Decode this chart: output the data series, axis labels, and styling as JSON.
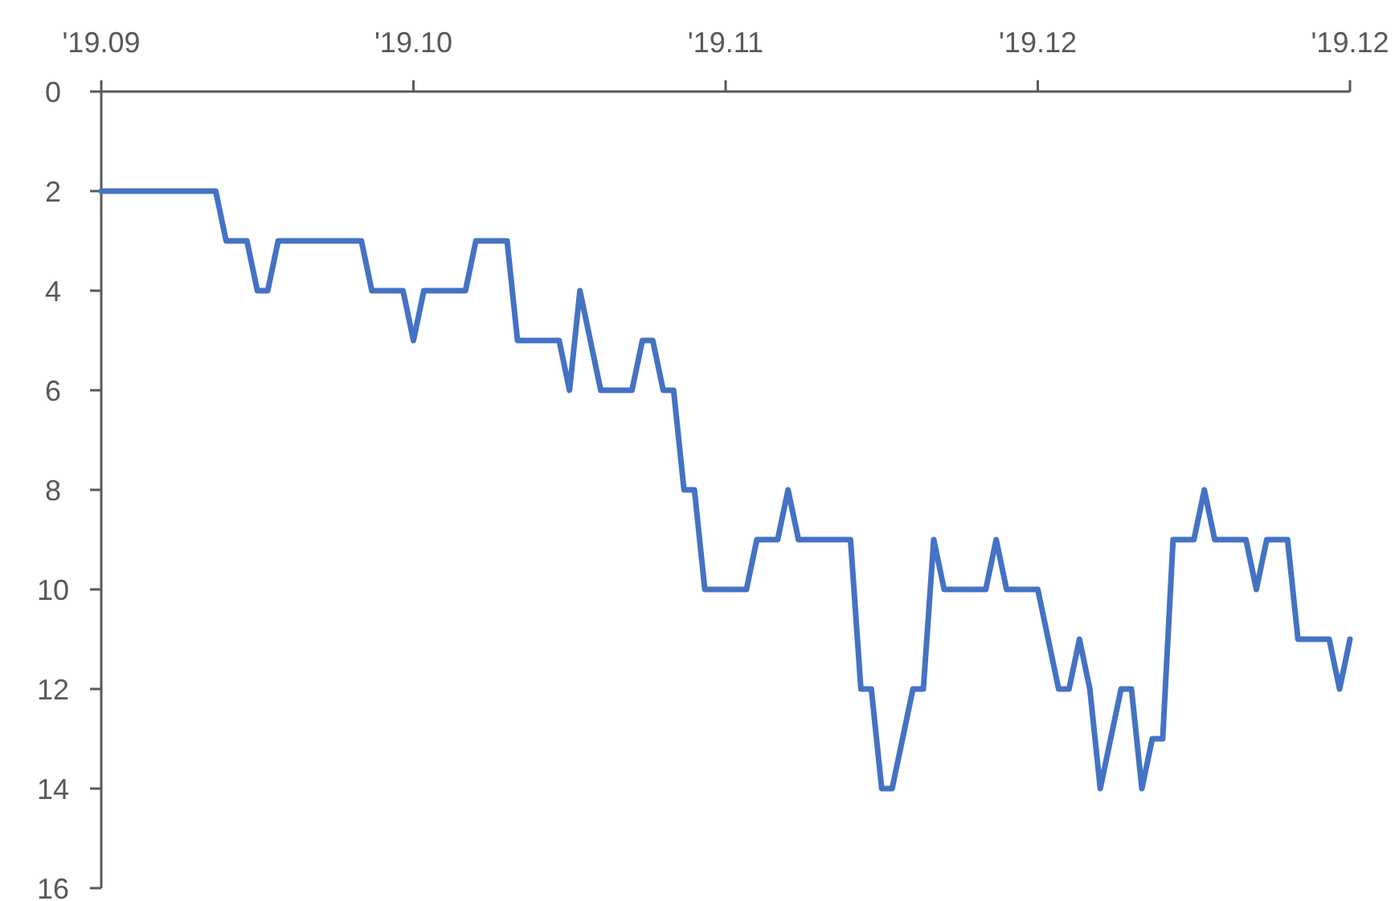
{
  "chart_data": {
    "type": "line",
    "x": [
      "2019-09-02",
      "2019-09-13",
      "2019-09-14",
      "2019-09-16",
      "2019-09-17",
      "2019-09-18",
      "2019-09-19",
      "2019-09-27",
      "2019-09-28",
      "2019-10-01",
      "2019-10-02",
      "2019-10-03",
      "2019-10-07",
      "2019-10-08",
      "2019-10-11",
      "2019-10-12",
      "2019-10-16",
      "2019-10-17",
      "2019-10-18",
      "2019-10-20",
      "2019-10-23",
      "2019-10-24",
      "2019-10-25",
      "2019-10-26",
      "2019-10-27",
      "2019-10-28",
      "2019-10-29",
      "2019-10-30",
      "2019-11-03",
      "2019-11-04",
      "2019-11-06",
      "2019-11-07",
      "2019-11-08",
      "2019-11-13",
      "2019-11-14",
      "2019-11-15",
      "2019-11-16",
      "2019-11-17",
      "2019-11-19",
      "2019-11-20",
      "2019-11-21",
      "2019-11-22",
      "2019-11-26",
      "2019-11-27",
      "2019-11-28",
      "2019-12-01",
      "2019-12-03",
      "2019-12-04",
      "2019-12-05",
      "2019-12-06",
      "2019-12-07",
      "2019-12-09",
      "2019-12-10",
      "2019-12-11",
      "2019-12-12",
      "2019-12-13",
      "2019-12-14",
      "2019-12-16",
      "2019-12-17",
      "2019-12-18",
      "2019-12-21",
      "2019-12-22",
      "2019-12-23",
      "2019-12-25",
      "2019-12-26",
      "2019-12-29",
      "2019-12-30",
      "2019-12-31"
    ],
    "series": [
      {
        "color": "#4472c4",
        "values": [
          2,
          2,
          3,
          3,
          4,
          4,
          3,
          3,
          4,
          4,
          5,
          4,
          4,
          3,
          3,
          5,
          5,
          6,
          4,
          6,
          6,
          5,
          5,
          6,
          6,
          8,
          8,
          10,
          10,
          9,
          9,
          8,
          9,
          9,
          12,
          12,
          14,
          14,
          12,
          12,
          9,
          10,
          10,
          9,
          10,
          10,
          12,
          12,
          11,
          12,
          14,
          12,
          12,
          14,
          13,
          13,
          9,
          9,
          8,
          9,
          9,
          10,
          9,
          9,
          11,
          11,
          12,
          11
        ]
      }
    ],
    "xlim": [
      "2019-09-02",
      "2019-12-31"
    ],
    "xticks": [
      {
        "value": "2019-09-02",
        "label": "'19.09"
      },
      {
        "value": "2019-10-02",
        "label": "'19.10"
      },
      {
        "value": "2019-11-01",
        "label": "'19.11"
      },
      {
        "value": "2019-12-01",
        "label": "'19.12"
      },
      {
        "value": "2019-12-31",
        "label": "'19.12"
      }
    ],
    "ylim": [
      16,
      0
    ],
    "yticks": [
      0,
      2,
      4,
      6,
      8,
      10,
      12,
      14,
      16
    ],
    "grid": false,
    "marker": "none",
    "line_style": "solid"
  }
}
